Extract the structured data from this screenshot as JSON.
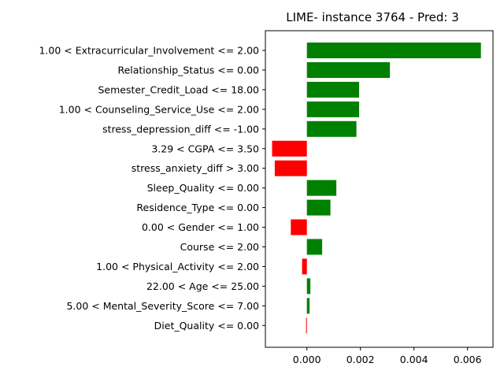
{
  "chart_data": {
    "type": "bar",
    "orientation": "horizontal",
    "title": "LIME- instance 3764 - Pred: 3",
    "xlabel": "",
    "ylabel": "",
    "xlim": [
      -0.00155,
      0.00695
    ],
    "xticks": [
      0.0,
      0.002,
      0.004,
      0.006
    ],
    "xtick_labels": [
      "0.000",
      "0.002",
      "0.004",
      "0.006"
    ],
    "grid": false,
    "colors": {
      "positive": "#008000",
      "negative": "#ff0000"
    },
    "categories": [
      "1.00 < Extracurricular_Involvement <= 2.00",
      "Relationship_Status <= 0.00",
      "Semester_Credit_Load <= 18.00",
      "1.00 < Counseling_Service_Use <= 2.00",
      "stress_depression_diff <= -1.00",
      "3.29 < CGPA <= 3.50",
      "stress_anxiety_diff > 3.00",
      "Sleep_Quality <= 0.00",
      "Residence_Type <= 0.00",
      "0.00 < Gender <= 1.00",
      "Course <= 2.00",
      "1.00 < Physical_Activity <= 2.00",
      "22.00 < Age <= 25.00",
      "5.00 < Mental_Severity_Score <= 7.00",
      "Diet_Quality <= 0.00"
    ],
    "values": [
      0.0065,
      0.0031,
      0.00195,
      0.00195,
      0.00185,
      -0.0013,
      -0.0012,
      0.0011,
      0.00088,
      -0.0006,
      0.00057,
      -0.00018,
      0.00013,
      0.0001,
      -3e-05
    ]
  }
}
